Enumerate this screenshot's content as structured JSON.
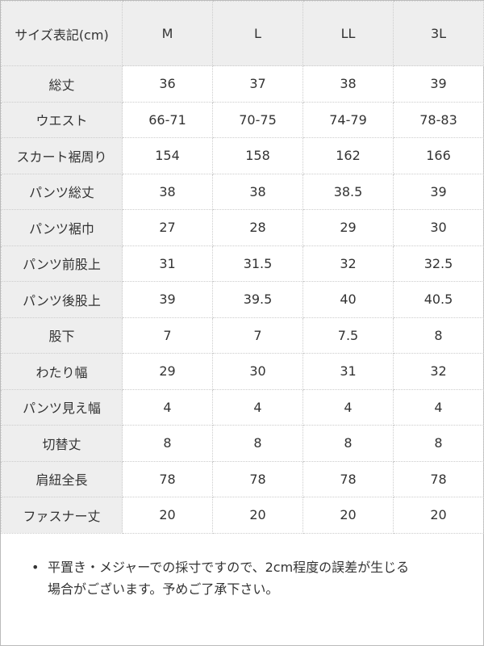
{
  "table": {
    "header": [
      "サイズ表記(cm)",
      "M",
      "L",
      "LL",
      "3L"
    ],
    "rows": [
      [
        "総丈",
        "36",
        "37",
        "38",
        "39"
      ],
      [
        "ウエスト",
        "66-71",
        "70-75",
        "74-79",
        "78-83"
      ],
      [
        "スカート裾周り",
        "154",
        "158",
        "162",
        "166"
      ],
      [
        "パンツ総丈",
        "38",
        "38",
        "38.5",
        "39"
      ],
      [
        "パンツ裾巾",
        "27",
        "28",
        "29",
        "30"
      ],
      [
        "パンツ前股上",
        "31",
        "31.5",
        "32",
        "32.5"
      ],
      [
        "パンツ後股上",
        "39",
        "39.5",
        "40",
        "40.5"
      ],
      [
        "股下",
        "7",
        "7",
        "7.5",
        "8"
      ],
      [
        "わたり幅",
        "29",
        "30",
        "31",
        "32"
      ],
      [
        "パンツ見え幅",
        "4",
        "4",
        "4",
        "4"
      ],
      [
        "切替丈",
        "8",
        "8",
        "8",
        "8"
      ],
      [
        "肩紐全長",
        "78",
        "78",
        "78",
        "78"
      ],
      [
        "ファスナー丈",
        "20",
        "20",
        "20",
        "20"
      ]
    ]
  },
  "note": {
    "lines": [
      "平置き・メジャーでの採寸ですので、2cm程度の誤差が生じる",
      "場合がございます。予めご了承下さい。"
    ]
  }
}
